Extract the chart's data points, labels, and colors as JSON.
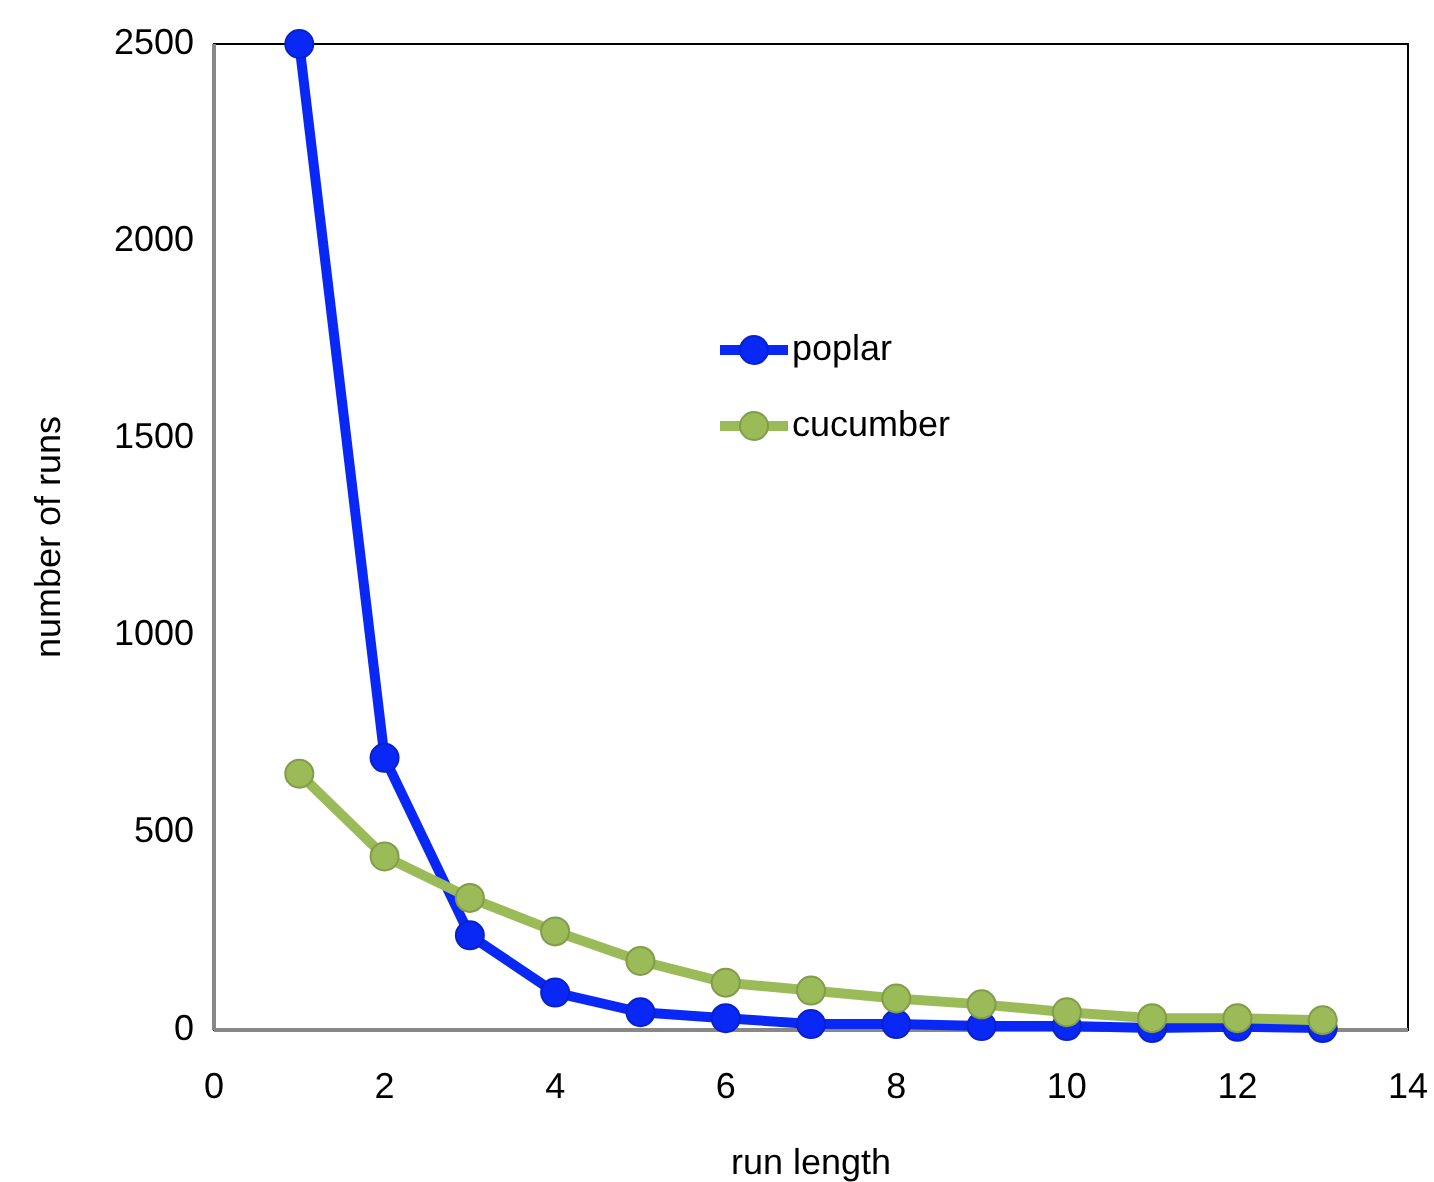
{
  "chart_data": {
    "type": "line",
    "xlabel": "run length",
    "ylabel": "number of runs",
    "x": [
      1,
      2,
      3,
      4,
      5,
      6,
      7,
      8,
      9,
      10,
      11,
      12,
      13
    ],
    "series": [
      {
        "name": "poplar",
        "color": "#0a28f5",
        "values": [
          2500,
          690,
          240,
          95,
          45,
          30,
          15,
          15,
          10,
          10,
          5,
          8,
          5
        ]
      },
      {
        "name": "cucumber",
        "color": "#9bbb59",
        "values": [
          650,
          440,
          335,
          250,
          175,
          120,
          100,
          80,
          65,
          45,
          30,
          30,
          25
        ]
      }
    ],
    "xlim": [
      0,
      14
    ],
    "xticks": [
      0,
      2,
      4,
      6,
      8,
      10,
      12,
      14
    ],
    "ylim": [
      0,
      2500
    ],
    "yticks": [
      0,
      500,
      1000,
      1500,
      2000,
      2500
    ],
    "grid": false,
    "legend": "top right",
    "marker": "circle",
    "line_style": "solid"
  }
}
